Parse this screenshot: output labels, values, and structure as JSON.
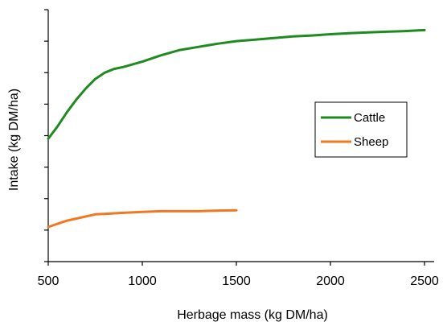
{
  "chart_data": {
    "type": "line",
    "title": "",
    "xlabel": "Herbage mass (kg DM/ha)",
    "ylabel": "Intake (kg DM/ha)",
    "xlim": [
      500,
      2500
    ],
    "ylim": [
      0,
      8
    ],
    "x_ticks": [
      500,
      1000,
      1500,
      2000,
      2500
    ],
    "y_ticks_labeled": false,
    "y_tick_count": 8,
    "grid": false,
    "legend_position": "right",
    "series": [
      {
        "name": "Cattle",
        "color": "#1f8a1f",
        "x": [
          500,
          550,
          600,
          650,
          700,
          750,
          800,
          850,
          900,
          1000,
          1100,
          1200,
          1300,
          1400,
          1500,
          1600,
          1700,
          1800,
          1900,
          2000,
          2100,
          2200,
          2300,
          2400,
          2500
        ],
        "y": [
          3.9,
          4.3,
          4.75,
          5.15,
          5.5,
          5.8,
          6.0,
          6.12,
          6.18,
          6.35,
          6.55,
          6.72,
          6.82,
          6.92,
          7.0,
          7.05,
          7.1,
          7.15,
          7.18,
          7.22,
          7.25,
          7.28,
          7.3,
          7.32,
          7.35
        ]
      },
      {
        "name": "Sheep",
        "color": "#f07820",
        "x": [
          500,
          600,
          750,
          900,
          1000,
          1100,
          1200,
          1300,
          1400,
          1500
        ],
        "y": [
          1.1,
          1.3,
          1.5,
          1.55,
          1.58,
          1.6,
          1.6,
          1.6,
          1.62,
          1.63
        ]
      }
    ]
  }
}
